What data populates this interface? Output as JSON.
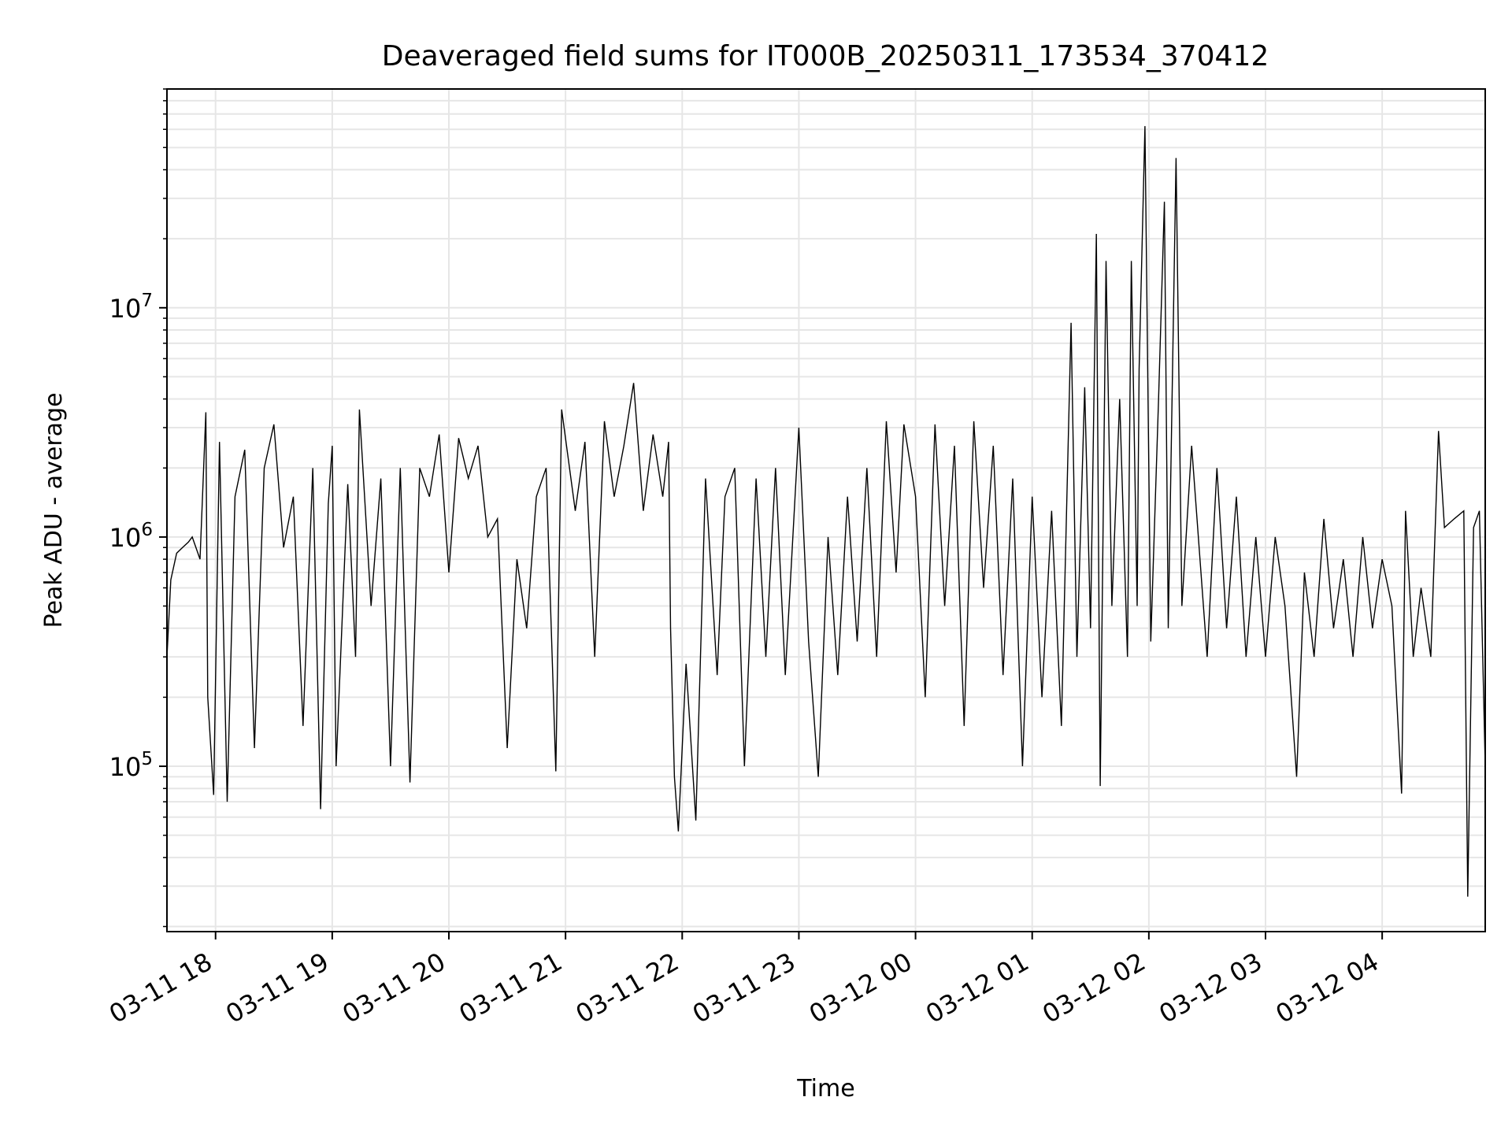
{
  "chart_data": {
    "type": "line",
    "title": "Deaveraged field sums for IT000B_20250311_173534_370412",
    "xlabel": "Time",
    "ylabel": "Peak ADU - average",
    "yscale": "log",
    "ylim": [
      19000,
      90000000
    ],
    "xlim": [
      "2025-03-11 17:35",
      "2025-03-12 04:53"
    ],
    "grid": true,
    "line_color": "#000000",
    "grid_color": "#e6e6e6",
    "x_tick_values": [
      "2025-03-11 18:00",
      "2025-03-11 19:00",
      "2025-03-11 20:00",
      "2025-03-11 21:00",
      "2025-03-11 22:00",
      "2025-03-11 23:00",
      "2025-03-12 00:00",
      "2025-03-12 01:00",
      "2025-03-12 02:00",
      "2025-03-12 03:00",
      "2025-03-12 04:00"
    ],
    "x_tick_labels": [
      "03-11 18",
      "03-11 19",
      "03-11 20",
      "03-11 21",
      "03-11 22",
      "03-11 23",
      "03-12 00",
      "03-12 01",
      "03-12 02",
      "03-12 03",
      "03-12 04"
    ],
    "y_major_ticks": [
      {
        "value": 100000,
        "base": "10",
        "exp": "5"
      },
      {
        "value": 1000000,
        "base": "10",
        "exp": "6"
      },
      {
        "value": 10000000,
        "base": "10",
        "exp": "7"
      }
    ],
    "series": [
      {
        "values": [
          [
            "2025-03-11 17:35",
            300000
          ],
          [
            "2025-03-11 17:37",
            650000
          ],
          [
            "2025-03-11 17:40",
            850000
          ],
          [
            "2025-03-11 17:43",
            900000
          ],
          [
            "2025-03-11 17:46",
            950000
          ],
          [
            "2025-03-11 17:48",
            1000000
          ],
          [
            "2025-03-11 17:52",
            800000
          ],
          [
            "2025-03-11 17:55",
            3500000
          ],
          [
            "2025-03-11 17:56",
            200000
          ],
          [
            "2025-03-11 17:59",
            75000
          ],
          [
            "2025-03-11 18:02",
            2600000
          ],
          [
            "2025-03-11 18:06",
            70000
          ],
          [
            "2025-03-11 18:10",
            1500000
          ],
          [
            "2025-03-11 18:15",
            2400000
          ],
          [
            "2025-03-11 18:20",
            120000
          ],
          [
            "2025-03-11 18:25",
            2000000
          ],
          [
            "2025-03-11 18:30",
            3100000
          ],
          [
            "2025-03-11 18:35",
            900000
          ],
          [
            "2025-03-11 18:40",
            1500000
          ],
          [
            "2025-03-11 18:45",
            150000
          ],
          [
            "2025-03-11 18:50",
            2000000
          ],
          [
            "2025-03-11 18:54",
            65000
          ],
          [
            "2025-03-11 18:58",
            1400000
          ],
          [
            "2025-03-11 19:00",
            2500000
          ],
          [
            "2025-03-11 19:02",
            100000
          ],
          [
            "2025-03-11 19:08",
            1700000
          ],
          [
            "2025-03-11 19:12",
            300000
          ],
          [
            "2025-03-11 19:14",
            3600000
          ],
          [
            "2025-03-11 19:20",
            500000
          ],
          [
            "2025-03-11 19:25",
            1800000
          ],
          [
            "2025-03-11 19:30",
            100000
          ],
          [
            "2025-03-11 19:35",
            2000000
          ],
          [
            "2025-03-11 19:40",
            85000
          ],
          [
            "2025-03-11 19:45",
            2000000
          ],
          [
            "2025-03-11 19:50",
            1500000
          ],
          [
            "2025-03-11 19:55",
            2800000
          ],
          [
            "2025-03-11 20:00",
            700000
          ],
          [
            "2025-03-11 20:05",
            2700000
          ],
          [
            "2025-03-11 20:10",
            1800000
          ],
          [
            "2025-03-11 20:15",
            2500000
          ],
          [
            "2025-03-11 20:20",
            1000000
          ],
          [
            "2025-03-11 20:25",
            1200000
          ],
          [
            "2025-03-11 20:30",
            120000
          ],
          [
            "2025-03-11 20:35",
            800000
          ],
          [
            "2025-03-11 20:40",
            400000
          ],
          [
            "2025-03-11 20:45",
            1500000
          ],
          [
            "2025-03-11 20:50",
            2000000
          ],
          [
            "2025-03-11 20:55",
            95000
          ],
          [
            "2025-03-11 20:58",
            3600000
          ],
          [
            "2025-03-11 21:05",
            1300000
          ],
          [
            "2025-03-11 21:10",
            2600000
          ],
          [
            "2025-03-11 21:15",
            300000
          ],
          [
            "2025-03-11 21:20",
            3200000
          ],
          [
            "2025-03-11 21:25",
            1500000
          ],
          [
            "2025-03-11 21:30",
            2500000
          ],
          [
            "2025-03-11 21:35",
            4700000
          ],
          [
            "2025-03-11 21:40",
            1300000
          ],
          [
            "2025-03-11 21:45",
            2800000
          ],
          [
            "2025-03-11 21:50",
            1500000
          ],
          [
            "2025-03-11 21:53",
            2600000
          ],
          [
            "2025-03-11 21:54",
            400000
          ],
          [
            "2025-03-11 21:56",
            90000
          ],
          [
            "2025-03-11 21:58",
            52000
          ],
          [
            "2025-03-11 22:02",
            280000
          ],
          [
            "2025-03-11 22:07",
            58000
          ],
          [
            "2025-03-11 22:12",
            1800000
          ],
          [
            "2025-03-11 22:18",
            250000
          ],
          [
            "2025-03-11 22:22",
            1500000
          ],
          [
            "2025-03-11 22:27",
            2000000
          ],
          [
            "2025-03-11 22:32",
            100000
          ],
          [
            "2025-03-11 22:38",
            1800000
          ],
          [
            "2025-03-11 22:43",
            300000
          ],
          [
            "2025-03-11 22:48",
            2000000
          ],
          [
            "2025-03-11 22:53",
            250000
          ],
          [
            "2025-03-11 23:00",
            3000000
          ],
          [
            "2025-03-11 23:05",
            350000
          ],
          [
            "2025-03-11 23:10",
            90000
          ],
          [
            "2025-03-11 23:15",
            1000000
          ],
          [
            "2025-03-11 23:20",
            250000
          ],
          [
            "2025-03-11 23:25",
            1500000
          ],
          [
            "2025-03-11 23:30",
            350000
          ],
          [
            "2025-03-11 23:35",
            2000000
          ],
          [
            "2025-03-11 23:40",
            300000
          ],
          [
            "2025-03-11 23:45",
            3200000
          ],
          [
            "2025-03-11 23:50",
            700000
          ],
          [
            "2025-03-11 23:54",
            3100000
          ],
          [
            "2025-03-12 00:00",
            1500000
          ],
          [
            "2025-03-12 00:05",
            200000
          ],
          [
            "2025-03-12 00:10",
            3100000
          ],
          [
            "2025-03-12 00:15",
            500000
          ],
          [
            "2025-03-12 00:20",
            2500000
          ],
          [
            "2025-03-12 00:25",
            150000
          ],
          [
            "2025-03-12 00:30",
            3200000
          ],
          [
            "2025-03-12 00:35",
            600000
          ],
          [
            "2025-03-12 00:40",
            2500000
          ],
          [
            "2025-03-12 00:45",
            250000
          ],
          [
            "2025-03-12 00:50",
            1800000
          ],
          [
            "2025-03-12 00:55",
            100000
          ],
          [
            "2025-03-12 01:00",
            1500000
          ],
          [
            "2025-03-12 01:05",
            200000
          ],
          [
            "2025-03-12 01:10",
            1300000
          ],
          [
            "2025-03-12 01:15",
            150000
          ],
          [
            "2025-03-12 01:20",
            8600000
          ],
          [
            "2025-03-12 01:23",
            300000
          ],
          [
            "2025-03-12 01:27",
            4500000
          ],
          [
            "2025-03-12 01:30",
            400000
          ],
          [
            "2025-03-12 01:33",
            21000000
          ],
          [
            "2025-03-12 01:35",
            82000
          ],
          [
            "2025-03-12 01:38",
            16000000
          ],
          [
            "2025-03-12 01:41",
            500000
          ],
          [
            "2025-03-12 01:45",
            4000000
          ],
          [
            "2025-03-12 01:49",
            300000
          ],
          [
            "2025-03-12 01:51",
            16000000
          ],
          [
            "2025-03-12 01:54",
            500000
          ],
          [
            "2025-03-12 01:55",
            5400000
          ],
          [
            "2025-03-12 01:58",
            62000000
          ],
          [
            "2025-03-12 02:01",
            350000
          ],
          [
            "2025-03-12 02:05",
            4000000
          ],
          [
            "2025-03-12 02:08",
            29000000
          ],
          [
            "2025-03-12 02:10",
            400000
          ],
          [
            "2025-03-12 02:14",
            45000000
          ],
          [
            "2025-03-12 02:17",
            500000
          ],
          [
            "2025-03-12 02:22",
            2500000
          ],
          [
            "2025-03-12 02:30",
            300000
          ],
          [
            "2025-03-12 02:35",
            2000000
          ],
          [
            "2025-03-12 02:40",
            400000
          ],
          [
            "2025-03-12 02:45",
            1500000
          ],
          [
            "2025-03-12 02:50",
            300000
          ],
          [
            "2025-03-12 02:55",
            1000000
          ],
          [
            "2025-03-12 03:00",
            300000
          ],
          [
            "2025-03-12 03:05",
            1000000
          ],
          [
            "2025-03-12 03:10",
            500000
          ],
          [
            "2025-03-12 03:16",
            90000
          ],
          [
            "2025-03-12 03:20",
            700000
          ],
          [
            "2025-03-12 03:25",
            300000
          ],
          [
            "2025-03-12 03:30",
            1200000
          ],
          [
            "2025-03-12 03:35",
            400000
          ],
          [
            "2025-03-12 03:40",
            800000
          ],
          [
            "2025-03-12 03:45",
            300000
          ],
          [
            "2025-03-12 03:50",
            1000000
          ],
          [
            "2025-03-12 03:55",
            400000
          ],
          [
            "2025-03-12 04:00",
            800000
          ],
          [
            "2025-03-12 04:05",
            500000
          ],
          [
            "2025-03-12 04:10",
            76000
          ],
          [
            "2025-03-12 04:12",
            1300000
          ],
          [
            "2025-03-12 04:16",
            300000
          ],
          [
            "2025-03-12 04:20",
            600000
          ],
          [
            "2025-03-12 04:25",
            300000
          ],
          [
            "2025-03-12 04:29",
            2900000
          ],
          [
            "2025-03-12 04:32",
            1100000
          ],
          [
            "2025-03-12 04:37",
            1200000
          ],
          [
            "2025-03-12 04:42",
            1300000
          ],
          [
            "2025-03-12 04:44",
            27000
          ],
          [
            "2025-03-12 04:47",
            1100000
          ],
          [
            "2025-03-12 04:50",
            1300000
          ],
          [
            "2025-03-12 04:53",
            100000
          ]
        ]
      }
    ]
  }
}
